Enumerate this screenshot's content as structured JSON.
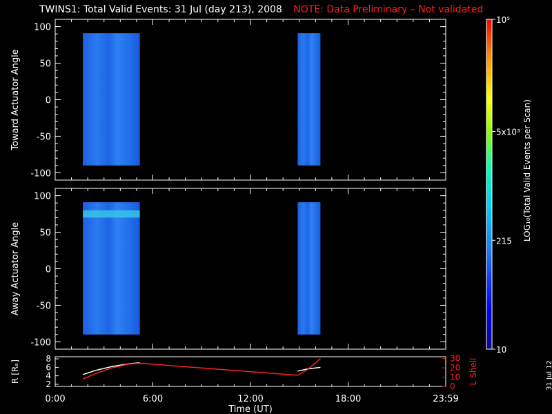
{
  "title": "TWINS1: Total Valid Events: 31 Jul (day 213), 2008",
  "note": "NOTE: Data Preliminary – Not validated",
  "stamp": "31 Jul 12",
  "colors": {
    "note": "#ff2020",
    "background": "#000000",
    "axes": "#ffffff",
    "lshell": "#ff2020",
    "r": "#ffffff"
  },
  "chart_data": [
    {
      "type": "heatmap",
      "ylabel": "Toward Actuator Angle",
      "ylim": [
        -110,
        110
      ],
      "yticks": [
        100,
        50,
        0,
        -50,
        -100
      ],
      "xlim": [
        0,
        24
      ],
      "blocks": [
        {
          "t_start": 1.7,
          "t_end": 5.2,
          "angle_min": -90,
          "angle_max": 91,
          "level": "low"
        },
        {
          "t_start": 14.9,
          "t_end": 16.3,
          "angle_min": -90,
          "angle_max": 91,
          "level": "low"
        }
      ]
    },
    {
      "type": "heatmap",
      "ylabel": "Away Actuator Angle",
      "ylim": [
        -110,
        110
      ],
      "yticks": [
        100,
        50,
        0,
        -50,
        -100
      ],
      "xlim": [
        0,
        24
      ],
      "blocks": [
        {
          "t_start": 1.7,
          "t_end": 5.2,
          "angle_min": -90,
          "angle_max": 91,
          "level": "low",
          "bright_band": [
            70,
            80
          ]
        },
        {
          "t_start": 14.9,
          "t_end": 16.3,
          "angle_min": -90,
          "angle_max": 91,
          "level": "low"
        }
      ]
    },
    {
      "type": "line",
      "ylabel_left": "R [Rₑ]",
      "ylabel_right": "L Shell",
      "yticks_left": [
        8,
        6,
        4,
        2
      ],
      "yticks_right": [
        30,
        20,
        10,
        0
      ],
      "ylim_left": [
        1.5,
        8.5
      ],
      "ylim_right": [
        0,
        32
      ],
      "xlabel": "Time (UT)",
      "xticks": [
        "0:00",
        "6:00",
        "12:00",
        "18:00",
        "23:59"
      ],
      "xtick_values": [
        0,
        6,
        12,
        18,
        24
      ],
      "series": [
        {
          "axis": "left",
          "color": "#ffffff",
          "x": [
            1.7,
            2.5,
            3.5,
            4.5,
            5.2,
            14.9,
            15.5,
            16.3
          ],
          "y": [
            4.3,
            5.3,
            6.2,
            6.8,
            7.1,
            5.1,
            5.6,
            6.0
          ]
        },
        {
          "axis": "right",
          "color": "#ff2020",
          "x": [
            1.7,
            2.5,
            3.5,
            4.5,
            5.2,
            14.9,
            15.5,
            16.3
          ],
          "y": [
            8,
            14,
            20,
            24,
            25,
            12,
            18,
            30
          ]
        }
      ]
    }
  ],
  "colorbar": {
    "label": "LOG₁₀(Total Valid Events per Scan)",
    "ticks": [
      "10⁵",
      "5x10³",
      "215",
      "10"
    ],
    "tick_fracs": [
      1.0,
      0.66,
      0.33,
      0.0
    ]
  }
}
